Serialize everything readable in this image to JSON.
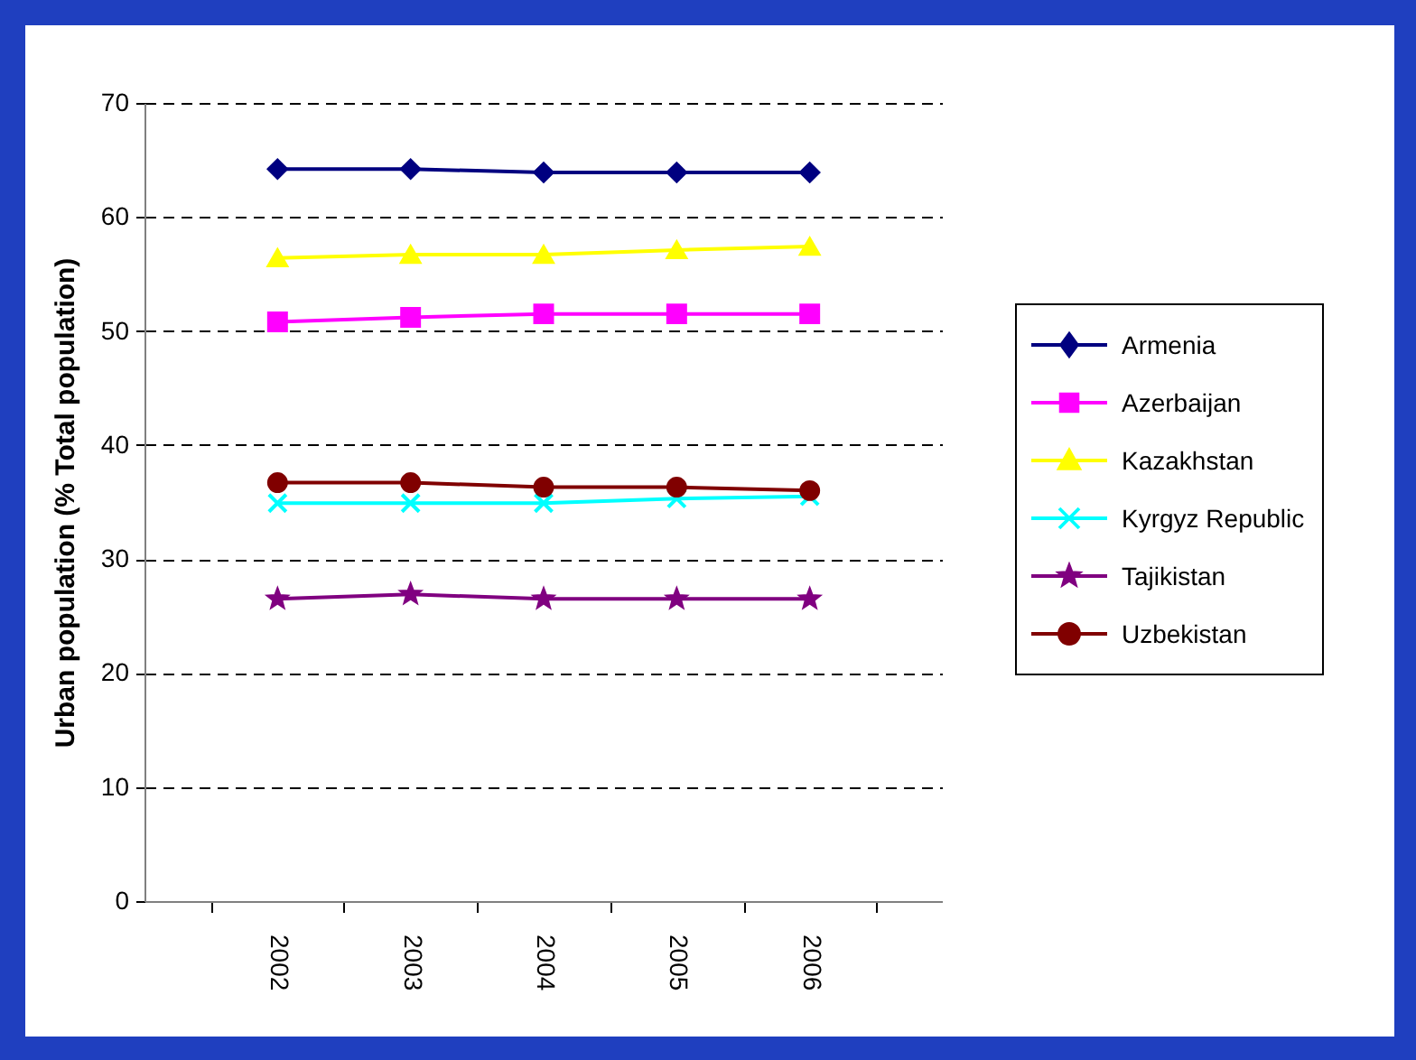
{
  "chart_data": {
    "type": "line",
    "ylabel": "Urban population (% Total population)",
    "categories": [
      "2002",
      "2003",
      "2004",
      "2005",
      "2006"
    ],
    "ylim": [
      0,
      70
    ],
    "yticks": [
      0,
      10,
      20,
      30,
      40,
      50,
      60,
      70
    ],
    "grid": "y",
    "legend": "right",
    "series": [
      {
        "name": "Armenia",
        "color": "#000080",
        "marker": "diamond",
        "values": [
          64.2,
          64.2,
          63.9,
          63.9,
          63.9
        ]
      },
      {
        "name": "Azerbaijan",
        "color": "#ff00ff",
        "marker": "square",
        "values": [
          50.8,
          51.2,
          51.5,
          51.5,
          51.5
        ]
      },
      {
        "name": "Kazakhstan",
        "color": "#ffff00",
        "marker": "triangle",
        "values": [
          56.4,
          56.7,
          56.7,
          57.1,
          57.4
        ]
      },
      {
        "name": "Kyrgyz Republic",
        "color": "#00ffff",
        "marker": "cross",
        "values": [
          34.9,
          34.9,
          34.9,
          35.3,
          35.5
        ]
      },
      {
        "name": "Tajikistan",
        "color": "#800080",
        "marker": "star",
        "values": [
          26.5,
          26.9,
          26.5,
          26.5,
          26.5
        ]
      },
      {
        "name": "Uzbekistan",
        "color": "#800000",
        "marker": "circle",
        "values": [
          36.7,
          36.7,
          36.3,
          36.3,
          36.0
        ]
      }
    ]
  }
}
